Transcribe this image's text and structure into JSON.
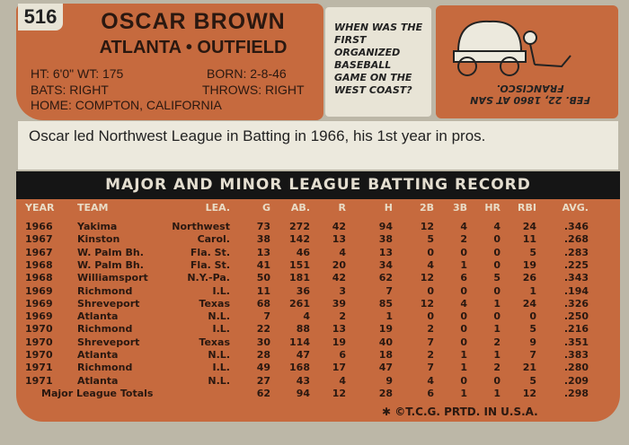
{
  "card_number": "516",
  "header": {
    "name": "OSCAR BROWN",
    "team_position": "ATLANTA • OUTFIELD",
    "ht_wt": "HT: 6'0\"  WT: 175",
    "born": "BORN: 2-8-46",
    "bats": "BATS: RIGHT",
    "throws": "THROWS: RIGHT",
    "home": "HOME: COMPTON, CALIFORNIA"
  },
  "quiz": {
    "question": "WHEN WAS THE FIRST ORGANIZED BASEBALL GAME ON THE WEST COAST?",
    "answer": "FEB. 22, 1860 AT SAN FRANCISCO."
  },
  "bio": "Oscar led Northwest League in Batting in 1966, his 1st year in pros.",
  "table": {
    "title": "MAJOR AND MINOR LEAGUE BATTING RECORD",
    "columns": [
      "YEAR",
      "TEAM",
      "LEA.",
      "G",
      "AB.",
      "R",
      "H",
      "2B",
      "3B",
      "HR",
      "RBI",
      "AVG."
    ],
    "rows": [
      [
        "1966",
        "Yakima",
        "Northwest",
        "73",
        "272",
        "42",
        "94",
        "12",
        "4",
        "4",
        "24",
        ".346"
      ],
      [
        "1967",
        "Kinston",
        "Carol.",
        "38",
        "142",
        "13",
        "38",
        "5",
        "2",
        "0",
        "11",
        ".268"
      ],
      [
        "1967",
        "W. Palm Bh.",
        "Fla. St.",
        "13",
        "46",
        "4",
        "13",
        "0",
        "0",
        "0",
        "5",
        ".283"
      ],
      [
        "1968",
        "W. Palm Bh.",
        "Fla. St.",
        "41",
        "151",
        "20",
        "34",
        "4",
        "1",
        "0",
        "19",
        ".225"
      ],
      [
        "1968",
        "Williamsport",
        "N.Y.-Pa.",
        "50",
        "181",
        "42",
        "62",
        "12",
        "6",
        "5",
        "26",
        ".343"
      ],
      [
        "1969",
        "Richmond",
        "I.L.",
        "11",
        "36",
        "3",
        "7",
        "0",
        "0",
        "0",
        "1",
        ".194"
      ],
      [
        "1969",
        "Shreveport",
        "Texas",
        "68",
        "261",
        "39",
        "85",
        "12",
        "4",
        "1",
        "24",
        ".326"
      ],
      [
        "1969",
        "Atlanta",
        "N.L.",
        "7",
        "4",
        "2",
        "1",
        "0",
        "0",
        "0",
        "0",
        ".250"
      ],
      [
        "1970",
        "Richmond",
        "I.L.",
        "22",
        "88",
        "13",
        "19",
        "2",
        "0",
        "1",
        "5",
        ".216"
      ],
      [
        "1970",
        "Shreveport",
        "Texas",
        "30",
        "114",
        "19",
        "40",
        "7",
        "0",
        "2",
        "9",
        ".351"
      ],
      [
        "1970",
        "Atlanta",
        "N.L.",
        "28",
        "47",
        "6",
        "18",
        "2",
        "1",
        "1",
        "7",
        ".383"
      ],
      [
        "1971",
        "Richmond",
        "I.L.",
        "49",
        "168",
        "17",
        "47",
        "7",
        "1",
        "2",
        "21",
        ".280"
      ],
      [
        "1971",
        "Atlanta",
        "N.L.",
        "27",
        "43",
        "4",
        "9",
        "4",
        "0",
        "0",
        "5",
        ".209"
      ]
    ],
    "totals": [
      "Major League Totals",
      "62",
      "94",
      "12",
      "28",
      "6",
      "1",
      "1",
      "12",
      ".298"
    ]
  },
  "footer": "✱ ©T.C.G. PRTD. IN U.S.A."
}
